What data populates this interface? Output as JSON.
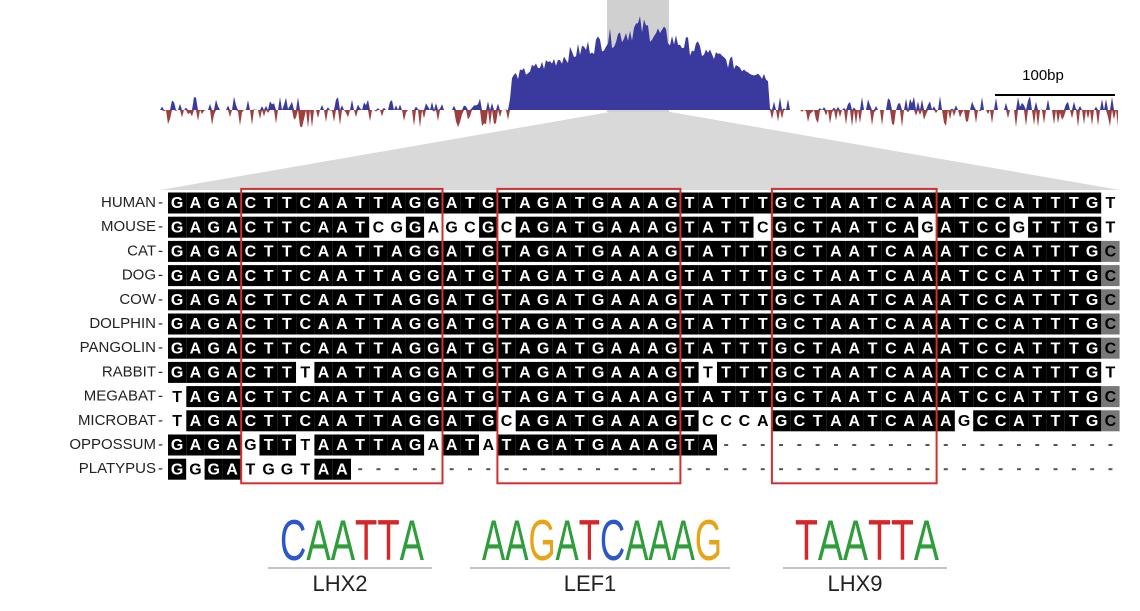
{
  "scale_bar": "100bp",
  "alignment": [
    {
      "species": "HUMAN",
      "sequence": "GAGACTTCAATTAGGATGTAGATGAAAGTATTTGCTAATCAAATCCATTTGT"
    },
    {
      "species": "MOUSE",
      "sequence": "GAGACTTCAATCGGAGCGCAGATGAAAGTATTCGCTAATCAGATCCGTTTGT"
    },
    {
      "species": "CAT",
      "sequence": "GAGACTTCAATTAGGATGTAGATGAAAGTATTTGCTAATCAAATCCATTTGC"
    },
    {
      "species": "DOG",
      "sequence": "GAGACTTCAATTAGGATGTAGATGAAAGTATTTGCTAATCAAATCCATTTGC"
    },
    {
      "species": "COW",
      "sequence": "GAGACTTCAATTAGGATGTAGATGAAAGTATTTGCTAATCAAATCCATTTGC"
    },
    {
      "species": "DOLPHIN",
      "sequence": "GAGACTTCAATTAGGATGTAGATGAAAGTATTTGCTAATCAAATCCATTTGC"
    },
    {
      "species": "PANGOLIN",
      "sequence": "GAGACTTCAATTAGGATGTAGATGAAAGTATTTGCTAATCAAATCCATTTGC"
    },
    {
      "species": "RABBIT",
      "sequence": "GAGACTTTAATTAGGATGTAGATGAAAGTTTTTGCTAATCAAATCCATTTGT"
    },
    {
      "species": "MEGABAT",
      "sequence": "TAGACTTCAATTAGGATGTAGATGAAAGTATTTGCTAATCAAATCCATTTGC"
    },
    {
      "species": "MICROBAT",
      "sequence": "TAGACTTCAATTAGGATGCAGATGAAAGTCCCAGCTAATCAAAGCCATTTGC"
    },
    {
      "species": "OPPOSSUM",
      "sequence": "GAGAGTTTAATTAGAATATAGATGAAAGTA----------------------"
    },
    {
      "species": "PLATYPUS",
      "sequence": "GGGATGGTAA------------------------------------------"
    }
  ],
  "motifs": [
    {
      "label": "LHX2",
      "letters": [
        "C",
        "A",
        "A",
        "T",
        "T",
        "A"
      ]
    },
    {
      "label": "LEF1",
      "letters": [
        "A",
        "A",
        "G",
        "A",
        "T",
        "C",
        "A",
        "A",
        "A",
        "G"
      ]
    },
    {
      "label": "LHX9",
      "letters": [
        "T",
        "A",
        "A",
        "T",
        "T",
        "A"
      ]
    }
  ]
}
